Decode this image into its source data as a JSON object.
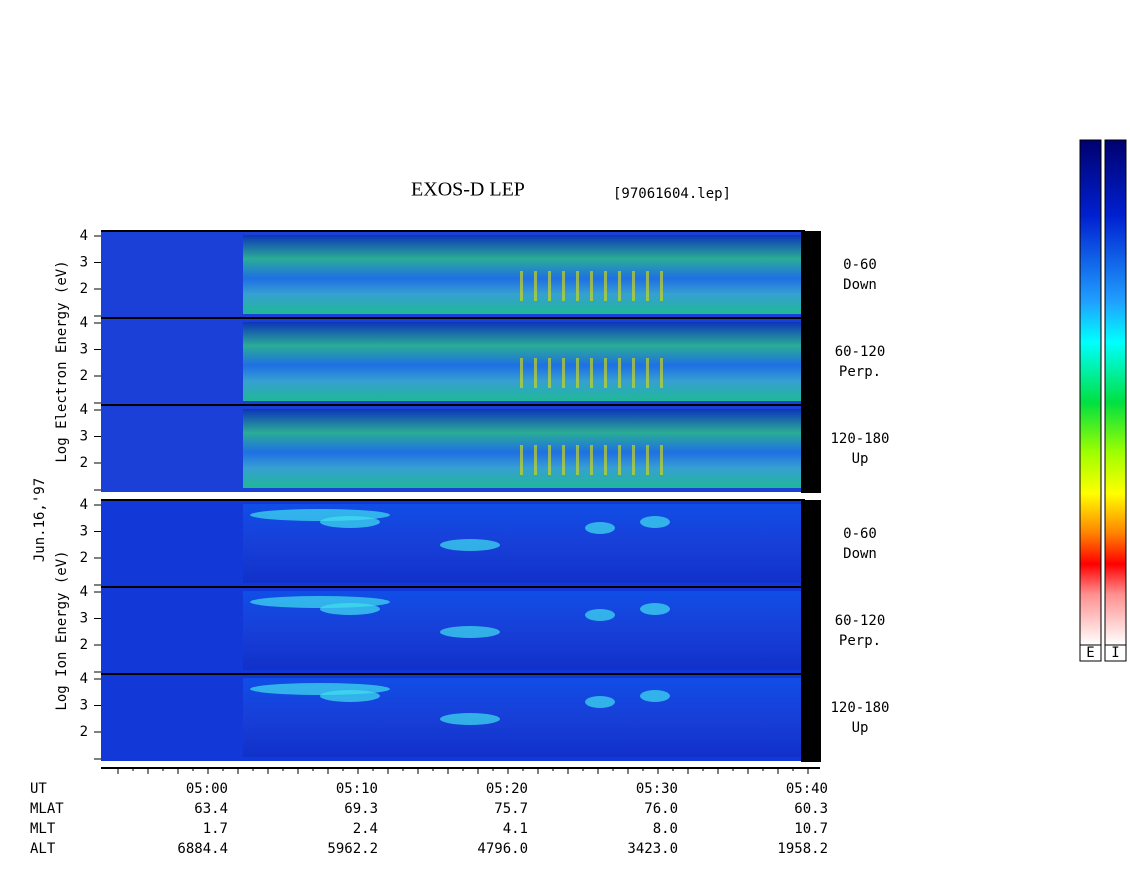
{
  "header": {
    "title": "EXOS-D LEP",
    "file": "[97061604.lep]"
  },
  "date": "Jun.16,'97",
  "groups": [
    {
      "axis_label": "Log Electron Energy (eV)",
      "panels": [
        {
          "angle": "0-60",
          "direction": "Down"
        },
        {
          "angle": "60-120",
          "direction": "Perp."
        },
        {
          "angle": "120-180",
          "direction": "Up"
        }
      ]
    },
    {
      "axis_label": "Log Ion Energy (eV)",
      "panels": [
        {
          "angle": "0-60",
          "direction": "Down"
        },
        {
          "angle": "60-120",
          "direction": "Perp."
        },
        {
          "angle": "120-180",
          "direction": "Up"
        }
      ]
    }
  ],
  "energy_ticks": [
    4,
    3,
    2
  ],
  "orbit_table": {
    "rows": [
      [
        "UT",
        "05:00",
        "05:10",
        "05:20",
        "05:30",
        "05:40"
      ],
      [
        "MLAT",
        "63.4",
        "69.3",
        "75.7",
        "76.0",
        "60.3"
      ],
      [
        "MLT",
        "1.7",
        "2.4",
        "4.1",
        "8.0",
        "10.7"
      ],
      [
        "ALT",
        "6884.4",
        "5962.2",
        "4796.0",
        "3423.0",
        "1958.2"
      ]
    ]
  },
  "colorbar_labels": [
    "E",
    "I"
  ]
}
